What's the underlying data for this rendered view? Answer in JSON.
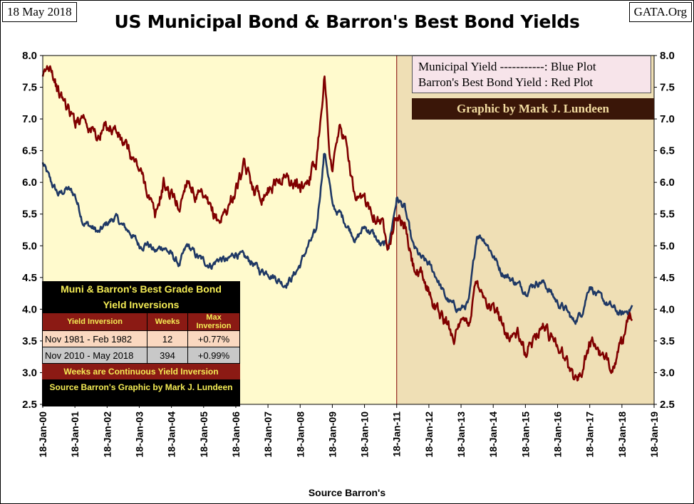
{
  "header": {
    "date": "18 May 2018",
    "site": "GATA.Org"
  },
  "chart_data": {
    "type": "line",
    "title": "US Municipal Bond & Barron's Best Bond Yields",
    "xlabel": "Source Barron's",
    "ylabel": "",
    "ylim": [
      2.5,
      8.0
    ],
    "y_ticks": [
      "2.5",
      "3.0",
      "3.5",
      "4.0",
      "4.5",
      "5.0",
      "5.5",
      "6.0",
      "6.5",
      "7.0",
      "7.5",
      "8.0"
    ],
    "x_ticks": [
      "18-Jan-00",
      "18-Jan-01",
      "18-Jan-02",
      "18-Jan-03",
      "18-Jan-04",
      "18-Jan-05",
      "18-Jan-06",
      "18-Jan-07",
      "18-Jan-08",
      "18-Jan-09",
      "18-Jan-10",
      "18-Jan-11",
      "18-Jan-12",
      "18-Jan-13",
      "18-Jan-14",
      "18-Jan-15",
      "18-Jan-16",
      "18-Jan-17",
      "18-Jan-18",
      "18-Jan-19"
    ],
    "grid": false,
    "regions": [
      {
        "from": "2000-01-18",
        "to": "2011-01-18",
        "color": "#fffacd"
      },
      {
        "from": "2011-01-18",
        "to": "2019-01-18",
        "color": "#efdfb5"
      }
    ],
    "series": [
      {
        "name": "Municipal Yield",
        "color": "#1f3864",
        "points": [
          [
            "2000-01-18",
            6.3
          ],
          [
            "2000-04-18",
            6.0
          ],
          [
            "2000-07-18",
            5.8
          ],
          [
            "2000-10-18",
            5.9
          ],
          [
            "2001-01-18",
            5.8
          ],
          [
            "2001-04-18",
            5.4
          ],
          [
            "2001-07-18",
            5.3
          ],
          [
            "2001-10-18",
            5.2
          ],
          [
            "2002-01-18",
            5.35
          ],
          [
            "2002-04-18",
            5.45
          ],
          [
            "2002-07-18",
            5.3
          ],
          [
            "2002-10-18",
            5.2
          ],
          [
            "2003-01-18",
            5.0
          ],
          [
            "2003-04-18",
            5.05
          ],
          [
            "2003-07-18",
            4.9
          ],
          [
            "2003-10-18",
            5.0
          ],
          [
            "2004-01-18",
            4.85
          ],
          [
            "2004-04-18",
            4.7
          ],
          [
            "2004-07-18",
            5.0
          ],
          [
            "2004-10-18",
            4.85
          ],
          [
            "2005-01-18",
            4.75
          ],
          [
            "2005-04-18",
            4.7
          ],
          [
            "2005-07-18",
            4.8
          ],
          [
            "2005-10-18",
            4.75
          ],
          [
            "2006-01-18",
            4.9
          ],
          [
            "2006-04-18",
            4.8
          ],
          [
            "2006-07-18",
            4.75
          ],
          [
            "2006-10-18",
            4.6
          ],
          [
            "2007-01-18",
            4.6
          ],
          [
            "2007-04-18",
            4.5
          ],
          [
            "2007-07-18",
            4.4
          ],
          [
            "2007-10-18",
            4.5
          ],
          [
            "2008-01-18",
            4.7
          ],
          [
            "2008-04-18",
            5.0
          ],
          [
            "2008-07-18",
            5.2
          ],
          [
            "2008-10-18",
            6.5
          ],
          [
            "2008-12-18",
            6.0
          ],
          [
            "2009-01-18",
            5.6
          ],
          [
            "2009-04-18",
            5.5
          ],
          [
            "2009-07-18",
            5.3
          ],
          [
            "2009-10-18",
            5.1
          ],
          [
            "2010-01-18",
            5.3
          ],
          [
            "2010-04-18",
            5.2
          ],
          [
            "2010-07-18",
            5.0
          ],
          [
            "2010-10-18",
            5.0
          ],
          [
            "2011-01-18",
            5.75
          ],
          [
            "2011-04-18",
            5.6
          ],
          [
            "2011-07-18",
            5.0
          ],
          [
            "2011-10-18",
            4.8
          ],
          [
            "2012-01-18",
            4.7
          ],
          [
            "2012-04-18",
            4.5
          ],
          [
            "2012-07-18",
            4.2
          ],
          [
            "2012-10-18",
            4.05
          ],
          [
            "2013-01-18",
            4.0
          ],
          [
            "2013-04-18",
            4.1
          ],
          [
            "2013-07-18",
            5.2
          ],
          [
            "2013-10-18",
            5.1
          ],
          [
            "2014-01-18",
            4.85
          ],
          [
            "2014-04-18",
            4.6
          ],
          [
            "2014-07-18",
            4.5
          ],
          [
            "2014-10-18",
            4.4
          ],
          [
            "2015-01-18",
            4.3
          ],
          [
            "2015-04-18",
            4.4
          ],
          [
            "2015-07-18",
            4.45
          ],
          [
            "2015-10-18",
            4.3
          ],
          [
            "2016-01-18",
            4.1
          ],
          [
            "2016-04-18",
            4.0
          ],
          [
            "2016-07-18",
            3.8
          ],
          [
            "2016-10-18",
            3.95
          ],
          [
            "2017-01-18",
            4.4
          ],
          [
            "2017-04-18",
            4.2
          ],
          [
            "2017-07-18",
            4.1
          ],
          [
            "2017-10-18",
            4.0
          ],
          [
            "2018-01-18",
            3.9
          ],
          [
            "2018-05-18",
            4.05
          ]
        ]
      },
      {
        "name": "Barron's Best Bond Yield",
        "color": "#800000",
        "points": [
          [
            "2000-01-18",
            7.6
          ],
          [
            "2000-04-18",
            7.9
          ],
          [
            "2000-07-18",
            7.4
          ],
          [
            "2000-10-18",
            7.2
          ],
          [
            "2001-01-18",
            6.95
          ],
          [
            "2001-04-18",
            7.1
          ],
          [
            "2001-07-18",
            6.85
          ],
          [
            "2001-10-18",
            6.7
          ],
          [
            "2002-01-18",
            6.9
          ],
          [
            "2002-04-18",
            6.85
          ],
          [
            "2002-07-18",
            6.6
          ],
          [
            "2002-10-18",
            6.4
          ],
          [
            "2003-01-18",
            6.2
          ],
          [
            "2003-04-18",
            5.9
          ],
          [
            "2003-07-18",
            5.4
          ],
          [
            "2003-10-18",
            6.0
          ],
          [
            "2004-01-18",
            5.8
          ],
          [
            "2004-04-18",
            5.6
          ],
          [
            "2004-07-18",
            6.1
          ],
          [
            "2004-10-18",
            5.8
          ],
          [
            "2005-01-18",
            5.7
          ],
          [
            "2005-04-18",
            5.5
          ],
          [
            "2005-07-18",
            5.4
          ],
          [
            "2005-10-18",
            5.6
          ],
          [
            "2006-01-18",
            5.9
          ],
          [
            "2006-04-18",
            6.2
          ],
          [
            "2006-07-18",
            6.0
          ],
          [
            "2006-10-18",
            5.8
          ],
          [
            "2007-01-18",
            5.9
          ],
          [
            "2007-04-18",
            6.0
          ],
          [
            "2007-07-18",
            6.1
          ],
          [
            "2007-10-18",
            6.0
          ],
          [
            "2008-01-18",
            5.9
          ],
          [
            "2008-04-18",
            6.1
          ],
          [
            "2008-07-18",
            6.3
          ],
          [
            "2008-10-18",
            7.7
          ],
          [
            "2008-12-18",
            6.5
          ],
          [
            "2009-01-18",
            6.2
          ],
          [
            "2009-04-18",
            6.9
          ],
          [
            "2009-07-18",
            6.4
          ],
          [
            "2009-10-18",
            5.6
          ],
          [
            "2010-01-18",
            5.7
          ],
          [
            "2010-04-18",
            5.6
          ],
          [
            "2010-07-18",
            5.4
          ],
          [
            "2010-10-18",
            5.1
          ],
          [
            "2011-01-18",
            5.5
          ],
          [
            "2011-04-18",
            5.3
          ],
          [
            "2011-07-18",
            4.7
          ],
          [
            "2011-10-18",
            4.5
          ],
          [
            "2012-01-18",
            4.3
          ],
          [
            "2012-04-18",
            4.0
          ],
          [
            "2012-07-18",
            3.8
          ],
          [
            "2012-10-18",
            3.6
          ],
          [
            "2013-01-18",
            3.7
          ],
          [
            "2013-04-18",
            3.8
          ],
          [
            "2013-07-18",
            4.5
          ],
          [
            "2013-10-18",
            4.2
          ],
          [
            "2014-01-18",
            4.0
          ],
          [
            "2014-04-18",
            3.8
          ],
          [
            "2014-07-18",
            3.6
          ],
          [
            "2014-10-18",
            3.6
          ],
          [
            "2015-01-18",
            3.3
          ],
          [
            "2015-04-18",
            3.5
          ],
          [
            "2015-07-18",
            3.8
          ],
          [
            "2015-10-18",
            3.6
          ],
          [
            "2016-01-18",
            3.5
          ],
          [
            "2016-04-18",
            3.2
          ],
          [
            "2016-07-18",
            2.9
          ],
          [
            "2016-10-18",
            3.0
          ],
          [
            "2017-01-18",
            3.5
          ],
          [
            "2017-04-18",
            3.4
          ],
          [
            "2017-07-18",
            3.1
          ],
          [
            "2017-10-18",
            3.2
          ],
          [
            "2018-01-18",
            3.4
          ],
          [
            "2018-05-18",
            3.95
          ]
        ]
      }
    ]
  },
  "legend": {
    "line1": "Municipal  Yield -----------: Blue Plot",
    "line2": "Barron's Best Bond  Yield : Red Plot",
    "credit": "Graphic by Mark J. Lundeen"
  },
  "inversion_table": {
    "title1": "Muni & Barron's Best Grade Bond",
    "title2": "Yield Inversions",
    "col_headers": [
      "Yield Inversion",
      "Weeks",
      "Max Inversion"
    ],
    "rows": [
      [
        "Nov 1981 - Feb 1982",
        "12",
        "+0.77%"
      ],
      [
        "Nov 2010 - May 2018",
        "394",
        "+0.99%"
      ]
    ],
    "note": "Weeks are Continuous Yield Inversion",
    "source": "Source Barron's Graphic by Mark J. Lundeen"
  }
}
